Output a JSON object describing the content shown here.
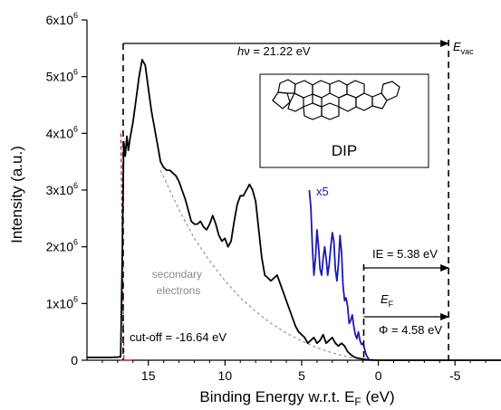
{
  "chart_data": {
    "type": "line",
    "title": "",
    "xlabel": "Binding Energy w.r.t. E",
    "xlabel_subscript": "F",
    "xlabel_unit": " (eV)",
    "ylabel": "Intensity (a.u.)",
    "xlim": [
      19,
      -8
    ],
    "ylim": [
      0,
      6000000
    ],
    "x_reversed": true,
    "grid": false,
    "x_ticks": [
      {
        "value": 15,
        "label": "15"
      },
      {
        "value": 10,
        "label": "10"
      },
      {
        "value": 5,
        "label": "5"
      },
      {
        "value": 0,
        "label": "0"
      },
      {
        "value": -5,
        "label": "-5"
      }
    ],
    "y_ticks": [
      {
        "value": 0,
        "label": "0",
        "exp": ""
      },
      {
        "value": 1000000,
        "label": "1x10",
        "exp": "6"
      },
      {
        "value": 2000000,
        "label": "2x10",
        "exp": "6"
      },
      {
        "value": 3000000,
        "label": "3x10",
        "exp": "6"
      },
      {
        "value": 4000000,
        "label": "4x10",
        "exp": "6"
      },
      {
        "value": 5000000,
        "label": "5x10",
        "exp": "6"
      },
      {
        "value": 6000000,
        "label": "6x10",
        "exp": "6"
      }
    ],
    "series": [
      {
        "color": "#000000",
        "x": [
          19,
          17.5,
          17.0,
          16.8,
          16.7,
          16.6,
          16.5,
          16.4,
          16.3,
          16.2,
          16.0,
          15.8,
          15.6,
          15.4,
          15.2,
          15.0,
          14.8,
          14.6,
          14.4,
          14.2,
          14.0,
          13.8,
          13.6,
          13.4,
          13.2,
          13.0,
          12.8,
          12.6,
          12.4,
          12.2,
          12.0,
          11.8,
          11.6,
          11.4,
          11.2,
          11.0,
          10.8,
          10.6,
          10.4,
          10.2,
          10.0,
          9.8,
          9.6,
          9.4,
          9.2,
          9.0,
          8.8,
          8.6,
          8.4,
          8.2,
          8.0,
          7.8,
          7.6,
          7.4,
          7.2,
          7.0,
          6.8,
          6.6,
          6.4,
          6.2,
          6.0,
          5.8,
          5.6,
          5.4,
          5.2,
          5.0,
          4.8,
          4.6,
          4.4,
          4.2,
          4.0,
          3.8,
          3.6,
          3.4,
          3.2,
          3.0,
          2.8,
          2.6,
          2.4,
          2.2,
          2.0,
          1.8,
          1.6,
          1.4,
          1.2,
          1.0,
          0.8,
          0.6,
          0.4,
          0.2,
          0.0,
          -0.5,
          -1.0,
          -2.0,
          -3.0,
          -4.0,
          -5.0,
          -6.0,
          -7.0,
          -8.0
        ],
        "y": [
          50000,
          50000,
          55000,
          60000,
          1800000,
          3850000,
          3600000,
          3950000,
          3700000,
          3900000,
          4200000,
          4600000,
          5000000,
          5300000,
          5200000,
          4800000,
          4400000,
          4100000,
          3800000,
          3500000,
          3400000,
          3350000,
          3350000,
          3300000,
          3250000,
          3150000,
          3000000,
          2850000,
          2650000,
          2450000,
          2400000,
          2400000,
          2450000,
          2350000,
          2300000,
          2400000,
          2550000,
          2400000,
          2200000,
          2100000,
          2150000,
          2000000,
          2100000,
          2450000,
          2750000,
          2900000,
          2900000,
          3000000,
          3100000,
          3000000,
          2800000,
          2300000,
          1800000,
          1500000,
          1450000,
          1400000,
          1450000,
          1500000,
          1350000,
          1200000,
          1050000,
          900000,
          750000,
          600000,
          500000,
          450000,
          400000,
          300000,
          350000,
          400000,
          300000,
          350000,
          450000,
          300000,
          350000,
          400000,
          300000,
          250000,
          300000,
          250000,
          150000,
          100000,
          60000,
          40000,
          30000,
          20000,
          10000,
          5000,
          3000,
          2000,
          0,
          0,
          0,
          0,
          0,
          0,
          0,
          0,
          0,
          0
        ]
      },
      {
        "color": "#1a1ab4",
        "x": [
          4.5,
          4.4,
          4.3,
          4.2,
          4.1,
          4.0,
          3.9,
          3.8,
          3.7,
          3.6,
          3.5,
          3.4,
          3.3,
          3.2,
          3.1,
          3.0,
          2.9,
          2.8,
          2.7,
          2.6,
          2.5,
          2.4,
          2.3,
          2.2,
          2.1,
          2.0,
          1.9,
          1.8,
          1.7,
          1.6,
          1.5,
          1.4,
          1.3,
          1.2,
          1.1,
          1.0,
          0.9,
          0.8,
          0.7,
          0.6
        ],
        "y": [
          3000000,
          2700000,
          2000000,
          1500000,
          1800000,
          2300000,
          2000000,
          1600000,
          1500000,
          1800000,
          2000000,
          1800000,
          1500000,
          1700000,
          2000000,
          2250000,
          2100000,
          1600000,
          1400000,
          1700000,
          2200000,
          1900000,
          1300000,
          1050000,
          1100000,
          950000,
          650000,
          700000,
          800000,
          600000,
          450000,
          380000,
          500000,
          350000,
          280000,
          300000,
          200000,
          100000,
          50000,
          20000
        ]
      }
    ],
    "secondary_curve": {
      "x": [
        14.2,
        13.0,
        12.0,
        11.0,
        10.0,
        9.0,
        8.0,
        7.0,
        6.0,
        5.0,
        4.0,
        3.0,
        2.0,
        1.0,
        0.0
      ],
      "y": [
        3350000,
        2650000,
        2150000,
        1750000,
        1400000,
        1100000,
        860000,
        650000,
        480000,
        340000,
        220000,
        130000,
        60000,
        20000,
        5000
      ]
    },
    "secondary_label": [
      "secondary",
      "electrons"
    ],
    "cutoff_marker_x": 16.64,
    "fermi_x": 0.95,
    "vacuum_x": -4.58,
    "annotations": {
      "hv_text": "ν = 21.22 eV",
      "hv_h": "h",
      "evac_main": "E",
      "evac_sub": "vac",
      "x5": "x5",
      "ie": "IE = 5.38 eV",
      "ef_main": "E",
      "ef_sub": "F",
      "phi": "Φ = 4.58 eV",
      "cutoff": "cut-off = -16.64 eV",
      "inset_label": "DIP"
    }
  }
}
